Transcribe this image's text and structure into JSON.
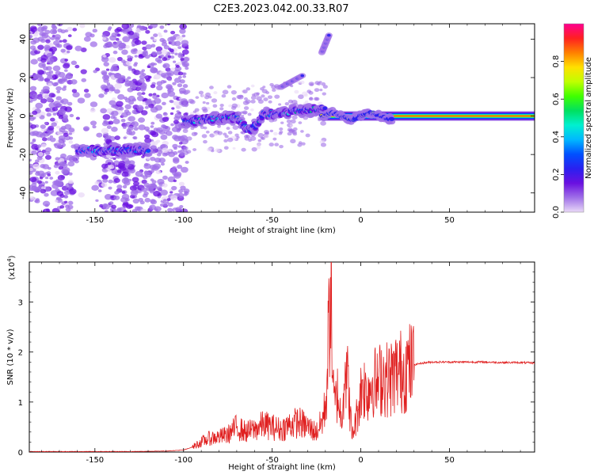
{
  "title": "C2E3.2023.042.00.33.R07",
  "chart_data": [
    {
      "type": "heatmap",
      "xlabel": "Height of straight line (km)",
      "ylabel": "Frequency (Hz)",
      "xlim": [
        -187,
        98
      ],
      "ylim": [
        -50,
        48
      ],
      "xticks": [
        -150,
        -100,
        -50,
        0,
        50
      ],
      "yticks": [
        -40,
        -20,
        0,
        20,
        40
      ],
      "colorbar": {
        "label": "Normalized spectral amplitude",
        "range": [
          0,
          1
        ],
        "ticks": [
          "0.0",
          "0.2",
          "0.4",
          "0.6",
          "0.8"
        ],
        "colors": [
          "#e9d9f7",
          "#a070e8",
          "#6a10e0",
          "#2a20f0",
          "#0050ff",
          "#00b8ff",
          "#00f0d0",
          "#00e060",
          "#40ff00",
          "#c0ff00",
          "#ffe000",
          "#ff8000",
          "#ff2020",
          "#ff0090"
        ]
      },
      "features": [
        {
          "name": "band",
          "x": [
            -160,
            -120
          ],
          "y": -18,
          "amplitude": 0.35
        },
        {
          "name": "band",
          "x": [
            -100,
            -20
          ],
          "y": [
            -3,
            4
          ],
          "amplitude": 0.45
        },
        {
          "name": "band",
          "x": [
            -20,
            98
          ],
          "y": 0,
          "amplitude": 0.9
        },
        {
          "name": "streak",
          "x": [
            -45,
            -33
          ],
          "y": [
            15,
            21
          ],
          "amplitude": 0.2
        },
        {
          "name": "streak",
          "x": [
            -22,
            -18
          ],
          "y": [
            33,
            42
          ],
          "amplitude": 0.25
        }
      ]
    },
    {
      "type": "line",
      "xlabel": "Height of straight line (km)",
      "ylabel": "SNR (10 * v/v)",
      "scale_label": "(x10",
      "scale_exp": "4",
      "xlim": [
        -187,
        98
      ],
      "ylim": [
        0,
        3.8
      ],
      "xticks": [
        -150,
        -100,
        -50,
        0,
        50
      ],
      "yticks": [
        0,
        1,
        2,
        3
      ],
      "color": "#e02020",
      "series": {
        "x": [
          -187,
          -160,
          -130,
          -110,
          -100,
          -95,
          -90,
          -85,
          -80,
          -75,
          -70,
          -65,
          -60,
          -55,
          -50,
          -45,
          -40,
          -35,
          -30,
          -25,
          -22,
          -20,
          -19,
          -18,
          -17,
          -16,
          -15,
          -13,
          -11,
          -9,
          -7,
          -5,
          -3,
          -1,
          1,
          3,
          5,
          7,
          9,
          12,
          15,
          18,
          20,
          22,
          24,
          26,
          28,
          30,
          35,
          40,
          45,
          50,
          60,
          70,
          80,
          90,
          98
        ],
        "y": [
          0.01,
          0.01,
          0.01,
          0.02,
          0.04,
          0.1,
          0.2,
          0.28,
          0.3,
          0.35,
          0.5,
          0.4,
          0.45,
          0.55,
          0.5,
          0.45,
          0.55,
          0.6,
          0.5,
          0.4,
          0.6,
          0.9,
          1.5,
          2.5,
          3.8,
          1.6,
          0.9,
          1.2,
          0.6,
          1.8,
          1.3,
          0.3,
          0.6,
          1.0,
          1.4,
          1.2,
          1.3,
          1.5,
          1.3,
          1.55,
          1.45,
          1.5,
          1.6,
          1.6,
          1.65,
          1.7,
          1.7,
          1.75,
          1.78,
          1.8,
          1.8,
          1.8,
          1.8,
          1.8,
          1.79,
          1.79,
          1.78
        ]
      }
    }
  ]
}
